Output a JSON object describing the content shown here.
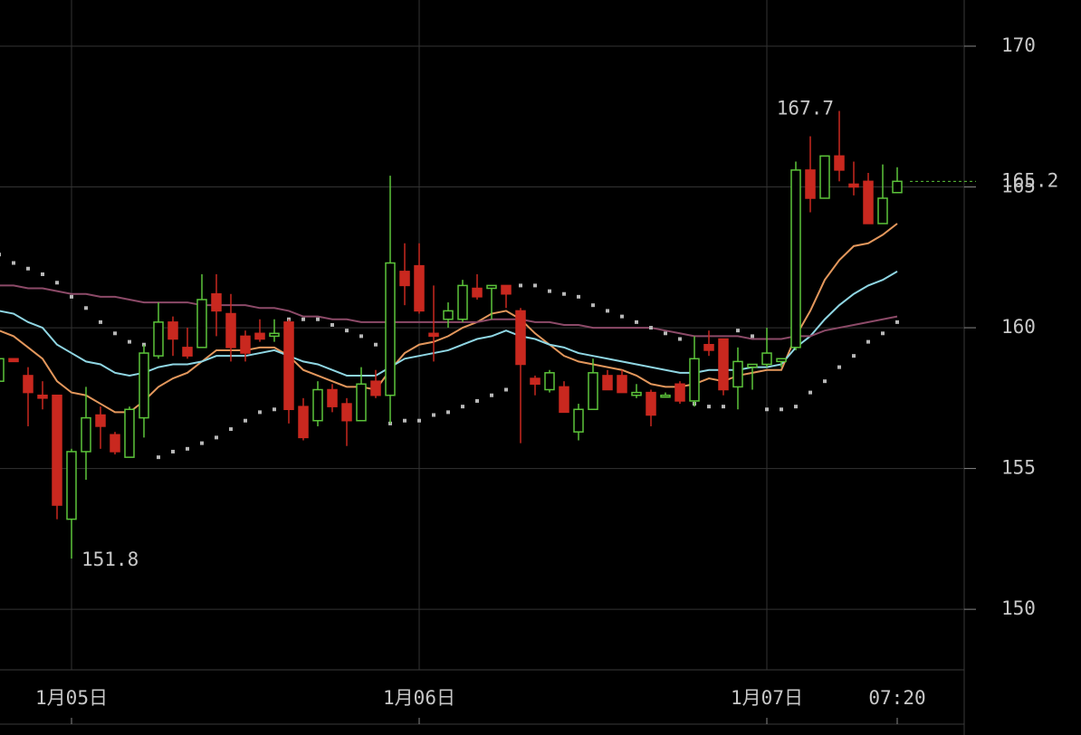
{
  "chart_data": {
    "type": "candlestick",
    "categories": [
      null,
      null,
      null,
      null,
      null,
      "1月05日",
      null,
      null,
      null,
      null,
      null,
      null,
      null,
      null,
      null,
      null,
      null,
      null,
      null,
      null,
      null,
      null,
      null,
      null,
      null,
      null,
      null,
      null,
      null,
      "1月06日",
      null,
      null,
      null,
      null,
      null,
      null,
      null,
      null,
      null,
      null,
      null,
      null,
      null,
      null,
      null,
      null,
      null,
      null,
      null,
      null,
      null,
      null,
      null,
      "1月07日",
      null,
      null,
      null,
      null,
      null,
      null,
      null,
      null,
      "07:20"
    ],
    "open": [
      158.1,
      158.9,
      158.3,
      157.6,
      157.6,
      153.2,
      155.6,
      156.9,
      156.2,
      155.4,
      156.8,
      159.0,
      160.2,
      159.3,
      159.3,
      161.2,
      160.5,
      159.7,
      159.8,
      159.7,
      160.2,
      157.2,
      156.7,
      157.8,
      157.3,
      156.7,
      158.1,
      157.6,
      162.0,
      162.2,
      159.8,
      160.3,
      160.3,
      161.4,
      161.4,
      161.5,
      160.6,
      158.2,
      157.8,
      157.9,
      156.3,
      157.1,
      158.3,
      158.3,
      157.6,
      157.7,
      157.6,
      158.0,
      157.4,
      159.4,
      159.6,
      157.9,
      158.6,
      158.7,
      158.8,
      159.3,
      165.6,
      164.6,
      166.1,
      165.1,
      165.2,
      163.7,
      164.8
    ],
    "high": [
      159.0,
      158.9,
      158.6,
      158.1,
      157.6,
      155.7,
      157.9,
      157.2,
      156.3,
      157.2,
      159.4,
      160.9,
      160.4,
      160.0,
      161.9,
      161.9,
      161.2,
      159.9,
      160.3,
      160.3,
      160.3,
      157.5,
      158.1,
      158.0,
      157.5,
      158.6,
      158.5,
      165.4,
      163.0,
      163.0,
      161.5,
      160.9,
      161.7,
      161.9,
      161.5,
      161.5,
      160.7,
      158.3,
      158.5,
      158.1,
      157.3,
      158.9,
      158.5,
      158.5,
      158.0,
      157.8,
      157.7,
      158.1,
      159.7,
      159.9,
      159.6,
      159.3,
      158.7,
      160.0,
      158.9,
      165.9,
      166.8,
      166.1,
      167.7,
      165.9,
      165.5,
      165.8,
      165.7
    ],
    "low": [
      158.0,
      158.8,
      156.5,
      157.1,
      153.2,
      151.8,
      154.6,
      155.7,
      155.5,
      155.4,
      156.1,
      158.9,
      159.0,
      158.9,
      159.3,
      159.7,
      158.8,
      158.8,
      159.5,
      159.5,
      156.6,
      156.0,
      156.5,
      157.0,
      155.8,
      156.7,
      157.5,
      156.6,
      160.8,
      160.5,
      158.8,
      160.0,
      160.2,
      161.0,
      160.3,
      160.7,
      155.9,
      157.6,
      157.7,
      157.0,
      156.0,
      157.1,
      157.8,
      157.7,
      157.5,
      156.5,
      157.6,
      157.3,
      157.2,
      159.0,
      157.6,
      157.1,
      157.8,
      158.6,
      158.6,
      159.2,
      164.1,
      164.6,
      165.2,
      164.7,
      163.7,
      163.7,
      164.8
    ],
    "close": [
      158.9,
      158.8,
      157.7,
      157.5,
      153.7,
      155.6,
      156.8,
      156.5,
      155.6,
      157.1,
      159.1,
      160.2,
      159.6,
      159.0,
      161.0,
      160.6,
      159.3,
      159.1,
      159.6,
      159.8,
      157.1,
      156.1,
      157.8,
      157.2,
      156.7,
      158.0,
      157.6,
      162.3,
      161.5,
      160.6,
      159.7,
      160.6,
      161.5,
      161.1,
      161.5,
      161.2,
      158.7,
      158.0,
      158.4,
      157.0,
      157.1,
      158.4,
      157.8,
      157.7,
      157.7,
      156.9,
      157.6,
      157.4,
      158.9,
      159.2,
      157.8,
      158.8,
      158.7,
      159.1,
      158.9,
      165.6,
      164.6,
      166.1,
      165.6,
      165.0,
      163.7,
      164.6,
      165.2
    ],
    "up_color": "#5cc43a",
    "down_color": "#c9281f",
    "series": [
      {
        "color": "#e3975c",
        "values": [
          159.9,
          159.7,
          159.3,
          158.9,
          158.1,
          157.7,
          157.6,
          157.3,
          157.0,
          157.0,
          157.4,
          157.9,
          158.2,
          158.4,
          158.8,
          159.2,
          159.2,
          159.2,
          159.3,
          159.3,
          159.0,
          158.5,
          158.3,
          158.1,
          157.9,
          157.9,
          157.8,
          158.5,
          159.1,
          159.4,
          159.5,
          159.7,
          160.0,
          160.2,
          160.5,
          160.6,
          160.3,
          159.8,
          159.4,
          159.0,
          158.8,
          158.7,
          158.6,
          158.5,
          158.3,
          158.0,
          157.9,
          157.9,
          158.0,
          158.2,
          158.1,
          158.3,
          158.4,
          158.5,
          158.5,
          159.7,
          160.6,
          161.7,
          162.4,
          162.9,
          163.0,
          163.3,
          163.7
        ]
      },
      {
        "color": "#8fd6e3",
        "values": [
          160.6,
          160.5,
          160.2,
          160.0,
          159.4,
          159.1,
          158.8,
          158.7,
          158.4,
          158.3,
          158.4,
          158.6,
          158.7,
          158.7,
          158.8,
          159.0,
          159.0,
          159.0,
          159.1,
          159.2,
          159.0,
          158.8,
          158.7,
          158.5,
          158.3,
          158.3,
          158.3,
          158.6,
          158.9,
          159.0,
          159.1,
          159.2,
          159.4,
          159.6,
          159.7,
          159.9,
          159.7,
          159.6,
          159.4,
          159.3,
          159.1,
          159.0,
          158.9,
          158.8,
          158.7,
          158.6,
          158.5,
          158.4,
          158.4,
          158.5,
          158.5,
          158.5,
          158.6,
          158.6,
          158.7,
          159.3,
          159.7,
          160.3,
          160.8,
          161.2,
          161.5,
          161.7,
          162.0
        ]
      },
      {
        "color": "#8c4a68",
        "values": [
          161.5,
          161.5,
          161.4,
          161.4,
          161.3,
          161.2,
          161.2,
          161.1,
          161.1,
          161.0,
          160.9,
          160.9,
          160.9,
          160.9,
          160.8,
          160.8,
          160.8,
          160.8,
          160.7,
          160.7,
          160.6,
          160.4,
          160.4,
          160.3,
          160.3,
          160.2,
          160.2,
          160.2,
          160.2,
          160.2,
          160.2,
          160.2,
          160.2,
          160.2,
          160.3,
          160.3,
          160.3,
          160.2,
          160.2,
          160.1,
          160.1,
          160.0,
          160.0,
          160.0,
          160.0,
          160.0,
          159.9,
          159.8,
          159.7,
          159.7,
          159.7,
          159.7,
          159.6,
          159.6,
          159.6,
          159.7,
          159.7,
          159.9,
          160.0,
          160.1,
          160.2,
          160.3,
          160.4
        ]
      }
    ],
    "sar": {
      "color": "#b8b8b8",
      "values": [
        162.6,
        162.3,
        162.1,
        161.9,
        161.6,
        161.1,
        160.7,
        160.2,
        159.8,
        159.5,
        159.4,
        155.4,
        155.6,
        155.7,
        155.9,
        156.1,
        156.4,
        156.7,
        157.0,
        157.1,
        160.3,
        160.3,
        160.3,
        160.1,
        159.9,
        159.7,
        159.4,
        156.6,
        156.7,
        156.7,
        156.9,
        157.0,
        157.2,
        157.4,
        157.6,
        157.8,
        161.5,
        161.5,
        161.3,
        161.2,
        161.1,
        160.8,
        160.6,
        160.4,
        160.2,
        160.0,
        159.8,
        159.6,
        157.3,
        157.2,
        157.2,
        159.9,
        159.7,
        157.1,
        157.1,
        157.2,
        157.7,
        158.1,
        158.6,
        159.0,
        159.5,
        159.8,
        160.2
      ]
    },
    "annotations": [
      167.7,
      151.8
    ],
    "last_price": 165.2,
    "ylim": [
      147.85,
      171.64
    ],
    "yticks": [
      150,
      155,
      160,
      165,
      170
    ],
    "grid": true
  }
}
